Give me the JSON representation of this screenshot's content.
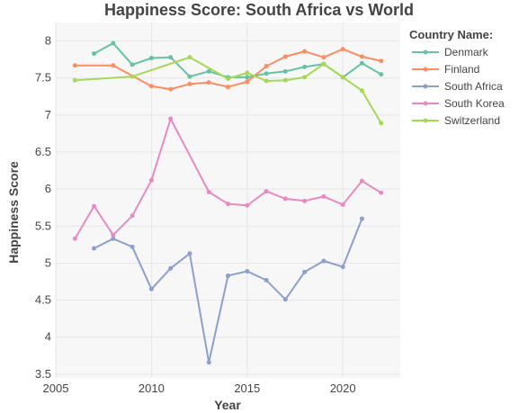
{
  "chart_data": {
    "type": "line",
    "title": "Happiness Score: South Africa vs World",
    "xlabel": "Year",
    "ylabel": "Happiness Score",
    "xlim": [
      2005,
      2023
    ],
    "ylim": [
      3.45,
      8.25
    ],
    "x_ticks": [
      2005,
      2010,
      2015,
      2020
    ],
    "y_ticks": [
      3.5,
      4,
      4.5,
      5,
      5.5,
      6,
      6.5,
      7,
      7.5,
      8
    ],
    "grid": true,
    "legend_title": "Country Name:",
    "legend_position": "right",
    "series": [
      {
        "name": "Denmark",
        "color": "#66c2a5",
        "points": [
          [
            2007,
            7.83
          ],
          [
            2008,
            7.97
          ],
          [
            2009,
            7.68
          ],
          [
            2010,
            7.77
          ],
          [
            2011,
            7.78
          ],
          [
            2012,
            7.52
          ],
          [
            2013,
            7.59
          ],
          [
            2014,
            7.51
          ],
          [
            2015,
            7.51
          ],
          [
            2016,
            7.56
          ],
          [
            2017,
            7.59
          ],
          [
            2018,
            7.65
          ],
          [
            2019,
            7.69
          ],
          [
            2020,
            7.51
          ],
          [
            2021,
            7.7
          ],
          [
            2022,
            7.55
          ]
        ]
      },
      {
        "name": "Finland",
        "color": "#fc8d62",
        "points": [
          [
            2006,
            7.67
          ],
          [
            2008,
            7.67
          ],
          [
            2010,
            7.39
          ],
          [
            2011,
            7.35
          ],
          [
            2012,
            7.42
          ],
          [
            2013,
            7.44
          ],
          [
            2014,
            7.38
          ],
          [
            2015,
            7.45
          ],
          [
            2016,
            7.66
          ],
          [
            2017,
            7.79
          ],
          [
            2018,
            7.86
          ],
          [
            2019,
            7.78
          ],
          [
            2020,
            7.89
          ],
          [
            2021,
            7.79
          ],
          [
            2022,
            7.73
          ]
        ]
      },
      {
        "name": "South Africa",
        "color": "#8da0cb",
        "points": [
          [
            2007,
            5.2
          ],
          [
            2008,
            5.33
          ],
          [
            2009,
            5.22
          ],
          [
            2010,
            4.65
          ],
          [
            2011,
            4.93
          ],
          [
            2012,
            5.13
          ],
          [
            2013,
            3.66
          ],
          [
            2014,
            4.83
          ],
          [
            2015,
            4.89
          ],
          [
            2016,
            4.77
          ],
          [
            2017,
            4.51
          ],
          [
            2018,
            4.88
          ],
          [
            2019,
            5.03
          ],
          [
            2020,
            4.95
          ],
          [
            2021,
            5.6
          ]
        ]
      },
      {
        "name": "South Korea",
        "color": "#e78ac3",
        "points": [
          [
            2006,
            5.33
          ],
          [
            2007,
            5.77
          ],
          [
            2008,
            5.38
          ],
          [
            2009,
            5.64
          ],
          [
            2010,
            6.12
          ],
          [
            2011,
            6.95
          ],
          [
            2013,
            5.96
          ],
          [
            2014,
            5.8
          ],
          [
            2015,
            5.78
          ],
          [
            2016,
            5.97
          ],
          [
            2017,
            5.87
          ],
          [
            2018,
            5.84
          ],
          [
            2019,
            5.9
          ],
          [
            2020,
            5.79
          ],
          [
            2021,
            6.11
          ],
          [
            2022,
            5.95
          ]
        ]
      },
      {
        "name": "Switzerland",
        "color": "#a6d854",
        "points": [
          [
            2006,
            7.47
          ],
          [
            2009,
            7.52
          ],
          [
            2012,
            7.78
          ],
          [
            2014,
            7.49
          ],
          [
            2015,
            7.57
          ],
          [
            2016,
            7.46
          ],
          [
            2017,
            7.47
          ],
          [
            2018,
            7.51
          ],
          [
            2019,
            7.69
          ],
          [
            2020,
            7.51
          ],
          [
            2021,
            7.33
          ],
          [
            2022,
            6.89
          ]
        ]
      }
    ]
  }
}
